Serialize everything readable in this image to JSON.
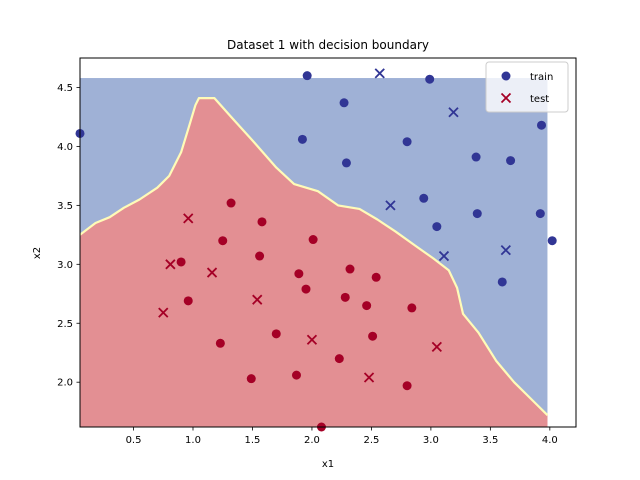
{
  "chart_data": {
    "type": "scatter",
    "title": "Dataset 1 with decision boundary",
    "xlabel": "x1",
    "ylabel": "x2",
    "xlim": [
      0.05,
      4.22
    ],
    "ylim": [
      1.62,
      4.75
    ],
    "xticks": [
      "0.5",
      "1.0",
      "1.5",
      "2.0",
      "2.5",
      "3.0",
      "3.5",
      "4.0"
    ],
    "yticks": [
      "2.0",
      "2.5",
      "3.0",
      "3.5",
      "4.0",
      "4.5"
    ],
    "legend": {
      "position": "top-right",
      "entries": [
        "train",
        "test"
      ]
    },
    "colors": {
      "class_0": "#313695",
      "class_1": "#a50026",
      "region_0": "#9fb1d6",
      "region_1": "#e38f93",
      "boundary": "#fffbb8"
    },
    "region_extent": {
      "x": [
        0.05,
        3.98
      ],
      "y": [
        1.62,
        4.58
      ]
    },
    "boundary_polyline": [
      [
        0.05,
        3.25
      ],
      [
        0.18,
        3.35
      ],
      [
        0.3,
        3.4
      ],
      [
        0.42,
        3.48
      ],
      [
        0.55,
        3.55
      ],
      [
        0.7,
        3.65
      ],
      [
        0.8,
        3.75
      ],
      [
        0.9,
        3.95
      ],
      [
        0.97,
        4.18
      ],
      [
        1.02,
        4.35
      ],
      [
        1.05,
        4.41
      ],
      [
        1.18,
        4.41
      ],
      [
        1.32,
        4.25
      ],
      [
        1.5,
        4.05
      ],
      [
        1.7,
        3.82
      ],
      [
        1.85,
        3.68
      ],
      [
        2.05,
        3.62
      ],
      [
        2.22,
        3.5
      ],
      [
        2.4,
        3.47
      ],
      [
        2.55,
        3.38
      ],
      [
        2.7,
        3.28
      ],
      [
        2.88,
        3.15
      ],
      [
        3.02,
        3.05
      ],
      [
        3.15,
        2.95
      ],
      [
        3.22,
        2.8
      ],
      [
        3.27,
        2.58
      ],
      [
        3.4,
        2.42
      ],
      [
        3.55,
        2.18
      ],
      [
        3.7,
        2.0
      ],
      [
        3.85,
        1.85
      ],
      [
        3.98,
        1.72
      ]
    ],
    "series": [
      {
        "name": "train",
        "marker": "circle",
        "points": [
          [
            0.05,
            4.11,
            0
          ],
          [
            1.96,
            4.6,
            0
          ],
          [
            2.27,
            4.37,
            0
          ],
          [
            2.99,
            4.57,
            0
          ],
          [
            1.92,
            4.06,
            0
          ],
          [
            2.29,
            3.86,
            0
          ],
          [
            2.8,
            4.04,
            0
          ],
          [
            3.93,
            4.18,
            0
          ],
          [
            3.38,
            3.91,
            0
          ],
          [
            3.67,
            3.88,
            0
          ],
          [
            2.94,
            3.56,
            0
          ],
          [
            3.05,
            3.32,
            0
          ],
          [
            3.39,
            3.43,
            0
          ],
          [
            3.92,
            3.43,
            0
          ],
          [
            4.02,
            3.2,
            0
          ],
          [
            3.6,
            2.85,
            0
          ],
          [
            1.32,
            3.52,
            1
          ],
          [
            1.58,
            3.36,
            1
          ],
          [
            1.25,
            3.2,
            1
          ],
          [
            2.01,
            3.21,
            1
          ],
          [
            1.56,
            3.07,
            1
          ],
          [
            0.9,
            3.02,
            1
          ],
          [
            2.32,
            2.96,
            1
          ],
          [
            1.89,
            2.92,
            1
          ],
          [
            2.54,
            2.89,
            1
          ],
          [
            1.95,
            2.79,
            1
          ],
          [
            0.96,
            2.69,
            1
          ],
          [
            2.28,
            2.72,
            1
          ],
          [
            2.46,
            2.65,
            1
          ],
          [
            2.84,
            2.63,
            1
          ],
          [
            1.7,
            2.41,
            1
          ],
          [
            2.51,
            2.39,
            1
          ],
          [
            1.23,
            2.33,
            1
          ],
          [
            2.23,
            2.2,
            1
          ],
          [
            1.49,
            2.03,
            1
          ],
          [
            1.87,
            2.06,
            1
          ],
          [
            2.8,
            1.97,
            1
          ],
          [
            2.08,
            1.62,
            1
          ]
        ]
      },
      {
        "name": "test",
        "marker": "x",
        "points": [
          [
            2.57,
            4.62,
            0
          ],
          [
            3.19,
            4.29,
            0
          ],
          [
            2.66,
            3.5,
            0
          ],
          [
            3.11,
            3.07,
            0
          ],
          [
            3.63,
            3.12,
            0
          ],
          [
            0.96,
            3.39,
            1
          ],
          [
            0.81,
            3.0,
            1
          ],
          [
            1.16,
            2.93,
            1
          ],
          [
            1.54,
            2.7,
            1
          ],
          [
            0.75,
            2.59,
            1
          ],
          [
            2.0,
            2.36,
            1
          ],
          [
            3.05,
            2.3,
            1
          ],
          [
            2.48,
            2.04,
            1
          ]
        ]
      }
    ]
  }
}
